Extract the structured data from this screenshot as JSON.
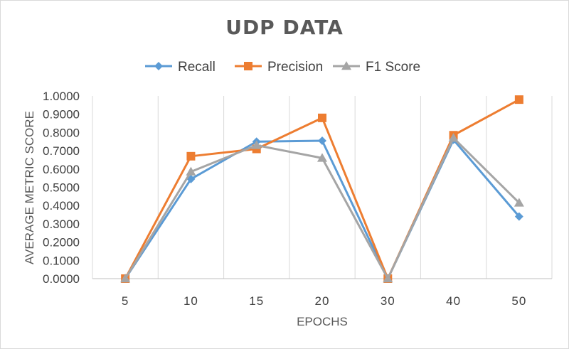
{
  "chart_data": {
    "type": "line",
    "title": "UDP DATA",
    "xlabel": "EPOCHS",
    "ylabel": "AVERAGE METRIC SCORE",
    "categories": [
      "5",
      "10",
      "15",
      "20",
      "30",
      "40",
      "50"
    ],
    "ylim": [
      0,
      1
    ],
    "yticks": [
      "0.0000",
      "0.1000",
      "0.2000",
      "0.3000",
      "0.4000",
      "0.5000",
      "0.6000",
      "0.7000",
      "0.8000",
      "0.9000",
      "1.0000"
    ],
    "grid": "vertical",
    "legend_position": "top",
    "series": [
      {
        "name": "Recall",
        "color": "#5b9bd5",
        "marker": "diamond",
        "values": [
          0.0,
          0.545,
          0.75,
          0.755,
          0.0,
          0.76,
          0.34
        ]
      },
      {
        "name": "Precision",
        "color": "#ed7d31",
        "marker": "square",
        "values": [
          0.0,
          0.67,
          0.71,
          0.88,
          0.0,
          0.785,
          0.98
        ]
      },
      {
        "name": "F1 Score",
        "color": "#a5a5a5",
        "marker": "triangle",
        "values": [
          0.0,
          0.585,
          0.73,
          0.66,
          0.0,
          0.77,
          0.415
        ]
      }
    ]
  }
}
